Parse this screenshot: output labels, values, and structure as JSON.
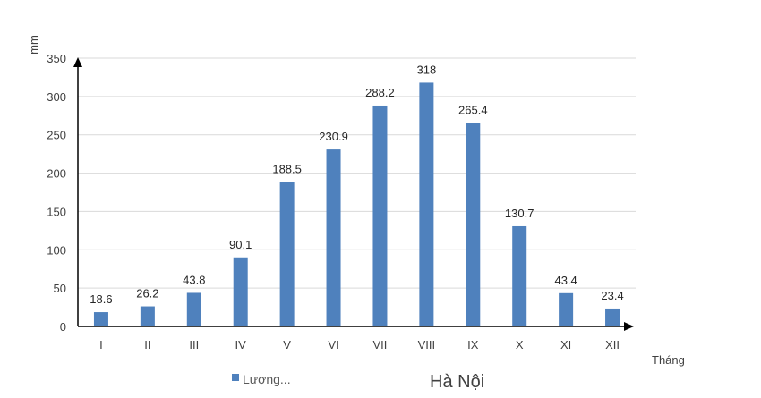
{
  "chart_data": {
    "type": "bar",
    "title": "",
    "xlabel": "Tháng",
    "ylabel": "mm",
    "categories": [
      "I",
      "II",
      "III",
      "IV",
      "V",
      "VI",
      "VII",
      "VIII",
      "IX",
      "X",
      "XI",
      "XII"
    ],
    "series": [
      {
        "name": "Lượng...",
        "values": [
          18.6,
          26.2,
          43.8,
          90.1,
          188.5,
          230.9,
          288.2,
          318,
          265.4,
          130.7,
          43.4,
          23.4
        ],
        "color": "#4F81BD"
      }
    ],
    "data_labels": [
      "18.6",
      "26.2",
      "43.8",
      "90.1",
      "188.5",
      "230.9",
      "288.2",
      "318",
      "265.4",
      "130.7",
      "43.4",
      "23.4"
    ],
    "ylim": [
      0,
      350
    ],
    "yticks": [
      0,
      50,
      100,
      150,
      200,
      250,
      300,
      350
    ],
    "grid": true,
    "legend": "bottom-left",
    "caption": "Hà Nội"
  }
}
